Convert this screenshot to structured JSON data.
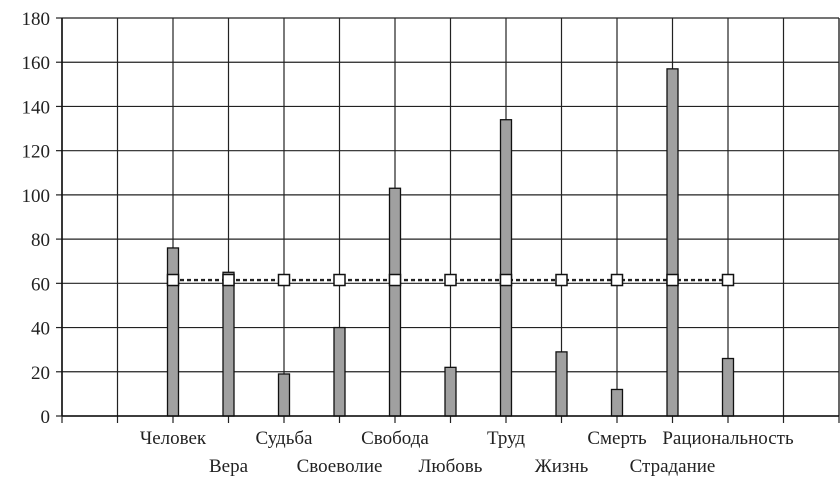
{
  "chart_data": {
    "type": "bar",
    "title": "",
    "xlabel": "",
    "ylabel": "",
    "ylim": [
      0,
      180
    ],
    "yticks": [
      0,
      20,
      40,
      60,
      80,
      100,
      120,
      140,
      160,
      180
    ],
    "grid": true,
    "categories": [
      "Человек",
      "Вера",
      "Судьба",
      "Своеволие",
      "Свобода",
      "Любовь",
      "Труд",
      "Жизнь",
      "Смерть",
      "Страдание",
      "Рациональность"
    ],
    "series": [
      {
        "type": "bar",
        "values": [
          76,
          65,
          19,
          40,
          103,
          22,
          134,
          29,
          12,
          157,
          26
        ],
        "color": "#a0a0a0"
      },
      {
        "type": "line",
        "values": [
          61.5,
          61.5,
          61.5,
          61.5,
          61.5,
          61.5,
          61.5,
          61.5,
          61.5,
          61.5,
          61.5
        ],
        "color": "#222222",
        "marker": "square"
      }
    ]
  }
}
